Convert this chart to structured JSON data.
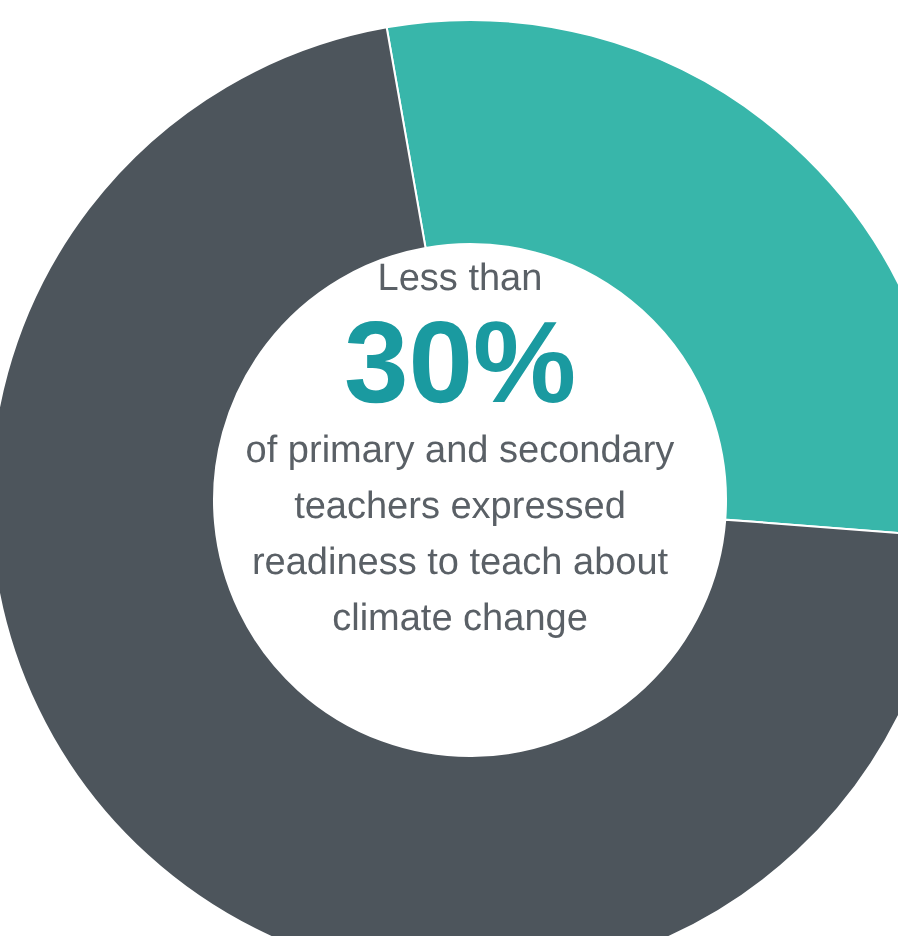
{
  "chart_data": {
    "type": "donut",
    "categories": [
      null,
      null
    ],
    "values": [
      29,
      71
    ],
    "colors": [
      "#38b6aa",
      "#4d555c"
    ],
    "annotations": [
      "Less than",
      "30%",
      "of primary and secondary teachers expressed readiness to teach about climate change"
    ]
  }
}
